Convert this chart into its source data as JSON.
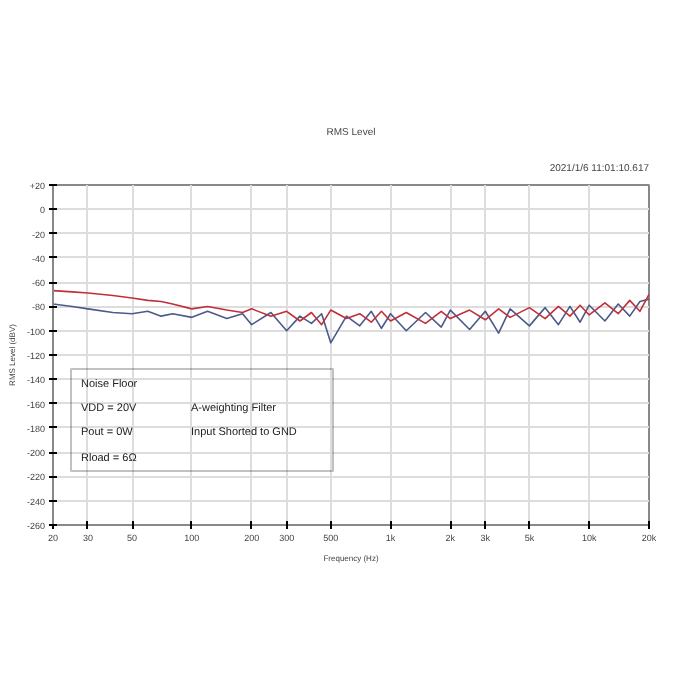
{
  "chart_data": {
    "type": "line",
    "title": "RMS Level",
    "subtitle": "2021/1/6 11:01:10.617",
    "xlabel": "Frequency (Hz)",
    "ylabel": "RMS Level (dBV)",
    "x": [
      20,
      25,
      30,
      40,
      50,
      60,
      70,
      80,
      100,
      120,
      150,
      180,
      200,
      250,
      300,
      350,
      400,
      450,
      500,
      600,
      700,
      800,
      900,
      1000,
      1200,
      1500,
      1800,
      2000,
      2500,
      3000,
      3500,
      4000,
      5000,
      6000,
      7000,
      8000,
      9000,
      10000,
      12000,
      14000,
      16000,
      18000,
      20000
    ],
    "series": [
      {
        "color": "#4a5a8a",
        "values": [
          -78,
          -80,
          -82,
          -85,
          -86,
          -84,
          -88,
          -86,
          -89,
          -84,
          -90,
          -86,
          -95,
          -85,
          -100,
          -88,
          -94,
          -86,
          -110,
          -88,
          -96,
          -84,
          -98,
          -86,
          -100,
          -85,
          -97,
          -83,
          -99,
          -84,
          -102,
          -82,
          -96,
          -81,
          -95,
          -80,
          -93,
          -79,
          -92,
          -78,
          -88,
          -76,
          -74
        ]
      },
      {
        "color": "#c0303a",
        "values": [
          -67,
          -68,
          -69,
          -71,
          -73,
          -75,
          -76,
          -78,
          -82,
          -80,
          -83,
          -85,
          -82,
          -88,
          -84,
          -92,
          -85,
          -95,
          -83,
          -90,
          -86,
          -93,
          -84,
          -92,
          -85,
          -94,
          -84,
          -90,
          -83,
          -91,
          -82,
          -89,
          -81,
          -90,
          -80,
          -88,
          -79,
          -87,
          -77,
          -86,
          -75,
          -84,
          -70
        ]
      }
    ],
    "log": "x",
    "xlim": [
      20,
      20000
    ],
    "xticks": [
      20,
      30,
      50,
      100,
      200,
      300,
      500,
      {
        "value": 1000,
        "label": "1k"
      },
      {
        "value": 2000,
        "label": "2k"
      },
      {
        "value": 3000,
        "label": "3k"
      },
      {
        "value": 5000,
        "label": "5k"
      },
      {
        "value": 10000,
        "label": "10k"
      },
      {
        "value": 20000,
        "label": "20k"
      }
    ],
    "ylim": [
      -260,
      20
    ],
    "yticks": [
      {
        "value": 20,
        "label": "+20"
      },
      0,
      -20,
      -40,
      -60,
      -80,
      -100,
      -120,
      -140,
      -160,
      -180,
      -200,
      -220,
      -240,
      -260
    ],
    "grid": true,
    "marker": "none",
    "line_style": "solid",
    "annotations": [
      "Noise Floor",
      "VDD = 20V",
      "Pout = 0W",
      "Rload = 6Ω",
      "A-weighting Filter",
      "Input Shorted to GND"
    ]
  }
}
